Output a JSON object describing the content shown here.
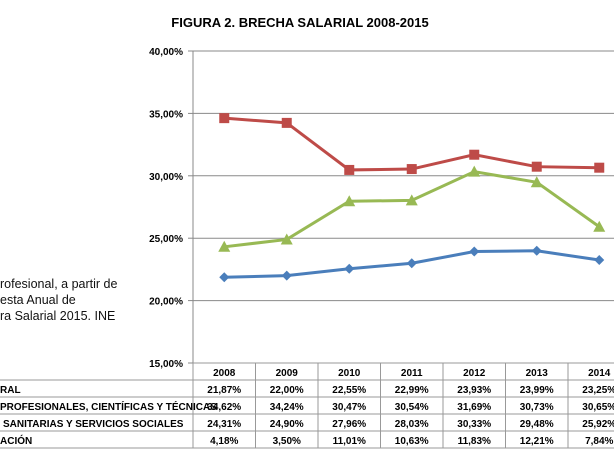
{
  "chart_data": {
    "type": "line",
    "title": "FIGURA 2. BRECHA SALARIAL 2008-2015",
    "categories": [
      "2008",
      "2009",
      "2010",
      "2011",
      "2012",
      "2013",
      "2014"
    ],
    "ylim": [
      0.15,
      0.4
    ],
    "yticks": [
      "40,00%",
      "35,00%",
      "30,00%",
      "25,00%",
      "20,00%",
      "15,00%"
    ],
    "grid": true,
    "series": [
      {
        "name": "RAL",
        "color": "#4a7ebb",
        "marker": "diamond",
        "values": [
          21.87,
          22.0,
          22.55,
          22.99,
          23.93,
          23.99,
          23.25
        ],
        "labels": [
          "21,87%",
          "22,00%",
          "22,55%",
          "22,99%",
          "23,93%",
          "23,99%",
          "23,25%"
        ]
      },
      {
        "name": "PROFESIONALES, CIENTÍFICAS Y TÉCNICAS",
        "color": "#be4b48",
        "marker": "square",
        "values": [
          34.62,
          34.24,
          30.47,
          30.54,
          31.69,
          30.73,
          30.65
        ],
        "labels": [
          "34,62%",
          "34,24%",
          "30,47%",
          "30,54%",
          "31,69%",
          "30,73%",
          "30,65%"
        ]
      },
      {
        "name": "SANITARIAS Y SERVICIOS SOCIALES",
        "color": "#98b954",
        "marker": "triangle",
        "values": [
          24.31,
          24.9,
          27.96,
          28.03,
          30.33,
          29.48,
          25.92
        ],
        "labels": [
          "24,31%",
          "24,90%",
          "27,96%",
          "28,03%",
          "30,33%",
          "29,48%",
          "25,92%"
        ]
      },
      {
        "name": "ACIÓN",
        "color": null,
        "marker": null,
        "values": [
          4.18,
          3.5,
          11.01,
          10.63,
          11.83,
          12.21,
          7.84
        ],
        "labels": [
          "4,18%",
          "3,50%",
          "11,01%",
          "10,63%",
          "11,83%",
          "12,21%",
          "7,84%"
        ]
      }
    ]
  },
  "note_lines": [
    "rofesional, a partir de",
    "esta Anual de",
    "ra Salarial 2015. INE"
  ]
}
